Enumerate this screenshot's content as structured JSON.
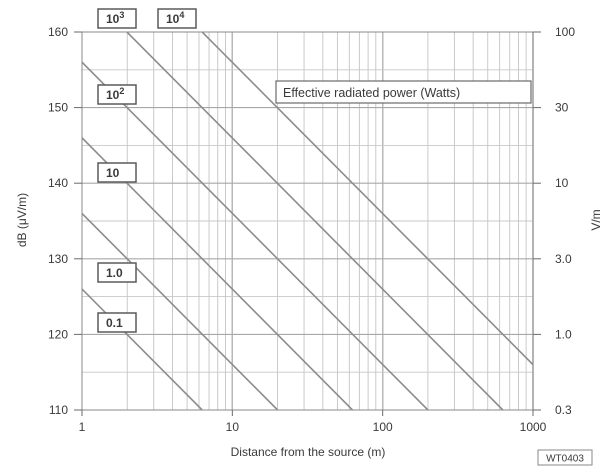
{
  "chart_data": {
    "type": "line",
    "title": "",
    "annotation": "Effective radiated power (Watts)",
    "xlabel": "Distance from the source (m)",
    "ylabel": "dB (μV/m)",
    "ylabel_right": "V/m",
    "x_scale": "log",
    "xlim": [
      1,
      1000
    ],
    "ylim": [
      110,
      160
    ],
    "grid": true,
    "x_ticks": [
      "1",
      "10",
      "100",
      "1000"
    ],
    "y_ticks": [
      "110",
      "120",
      "130",
      "140",
      "150",
      "160"
    ],
    "y_right_ticks": [
      "0.3",
      "1.0",
      "3.0",
      "10",
      "30",
      "100"
    ],
    "series": [
      {
        "label": "0.1",
        "label_sup": "",
        "x": [
          1,
          6.3
        ],
        "y": [
          126,
          110
        ]
      },
      {
        "label": "1.0",
        "label_sup": "",
        "x": [
          1,
          20
        ],
        "y": [
          136,
          110
        ]
      },
      {
        "label": "10",
        "label_sup": "",
        "x": [
          1,
          63
        ],
        "y": [
          146,
          110
        ]
      },
      {
        "label": "10",
        "label_sup": "2",
        "x": [
          1,
          200
        ],
        "y": [
          156,
          110
        ]
      },
      {
        "label": "10",
        "label_sup": "3",
        "x": [
          1.58,
          630
        ],
        "y": [
          162,
          110
        ]
      },
      {
        "label": "10",
        "label_sup": "4",
        "x": [
          5,
          1000
        ],
        "y": [
          162,
          116
        ]
      }
    ],
    "figure_code": "WT0403"
  }
}
